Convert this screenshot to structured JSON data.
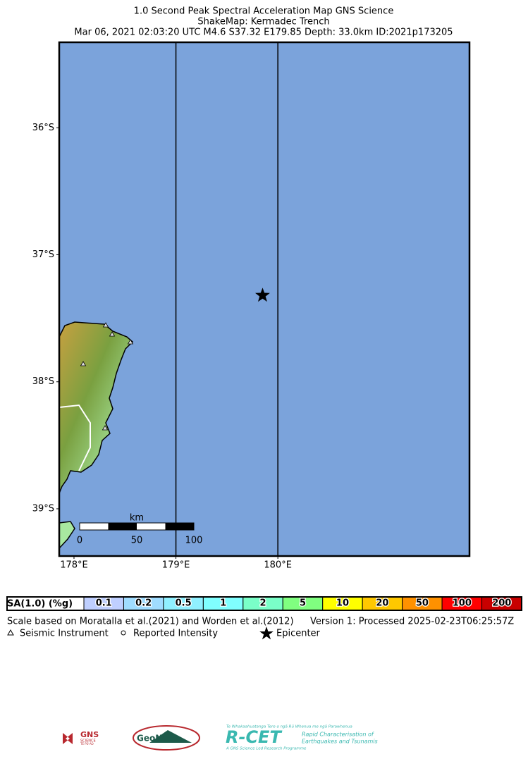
{
  "title": [
    "1.0 Second Peak Spectral Acceleration Map GNS Science",
    "ShakeMap: Kermadec Trench",
    "Mar 06, 2021 02:03:20 UTC M4.6 S37.32 E179.85 Depth: 33.0km ID:2021p173205"
  ],
  "map": {
    "xlim": [
      177.855,
      181.88
    ],
    "ylim": [
      -39.372,
      -35.327
    ],
    "xticks": [
      {
        "value": 178,
        "label": "178°E"
      },
      {
        "value": 179,
        "label": "179°E"
      },
      {
        "value": 180,
        "label": "180°E"
      }
    ],
    "yticks": [
      {
        "value": -36,
        "label": "36°S"
      },
      {
        "value": -37,
        "label": "37°S"
      },
      {
        "value": -38,
        "label": "38°S"
      },
      {
        "value": -39,
        "label": "39°S"
      }
    ],
    "epicenter": {
      "lon": 179.85,
      "lat": -37.32
    },
    "scale_bar": {
      "unit": "km",
      "ticks": [
        0,
        50,
        100
      ]
    }
  },
  "legend": {
    "label": "SA(1.0) (%g)",
    "bins": [
      {
        "label": "0.1",
        "color": "#bfcfff"
      },
      {
        "label": "0.2",
        "color": "#a0dcff"
      },
      {
        "label": "0.5",
        "color": "#90f0ff"
      },
      {
        "label": "1",
        "color": "#80ffff"
      },
      {
        "label": "2",
        "color": "#7affc8"
      },
      {
        "label": "5",
        "color": "#80ff80"
      },
      {
        "label": "10",
        "color": "#ffff00"
      },
      {
        "label": "20",
        "color": "#ffc800"
      },
      {
        "label": "50",
        "color": "#ff9100"
      },
      {
        "label": "100",
        "color": "#ff0000"
      },
      {
        "label": "200",
        "color": "#c80000"
      }
    ]
  },
  "notes": {
    "scale": "Scale based on Moratalla et al.(2021) and Worden et al.(2012)",
    "version": "Version 1: Processed 2025-02-23T06:25:57Z"
  },
  "symbols": {
    "instrument": "Seismic Instrument",
    "intensity": "Reported Intensity",
    "epicenter": "Epicenter"
  },
  "logos": {
    "gns": "GNS",
    "gns_sub": "SCIENCE",
    "gns_maori": "TE PŪ AO",
    "geonet": "GeoNet",
    "rcet": "R-CET",
    "rcet_maori": "Te Whakaahuatanga Tere o ngā Rū Whenua me ngā Parawhenua",
    "rcet_line1": "Rapid Characterisation of",
    "rcet_line2": "Earthquakes and Tsunamis",
    "rcet_sub": "A GNS Science Led Research Programme"
  }
}
